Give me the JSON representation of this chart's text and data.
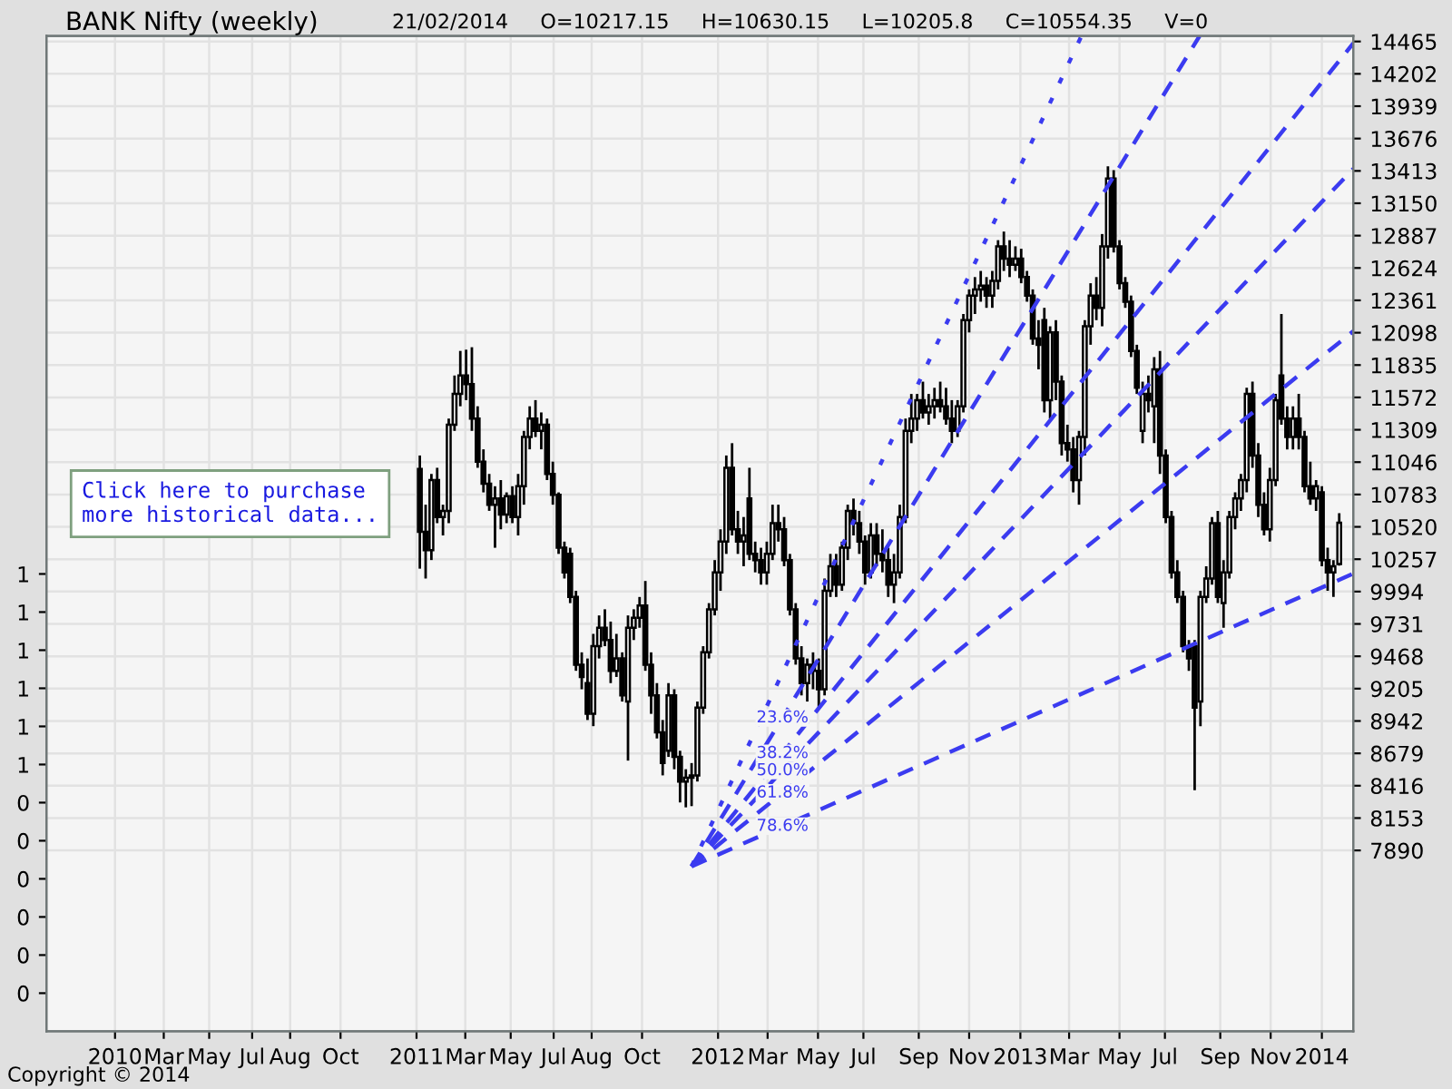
{
  "chart_data": {
    "type": "candlestick",
    "title": "BANK Nifty (weekly)",
    "subtitle": "21/02/2014     O=10217.15     H=10630.15     L=10205.8     C=10554.35     V=0",
    "annotations": [
      "Click here to purchase\nmore historical data...",
      "Copyright © 2014"
    ],
    "series": [
      {
        "color": "#000000",
        "x": [
          "2011-02-04",
          "2011-02-11",
          "2011-02-18",
          "2011-02-25",
          "2011-03-04",
          "2011-03-11",
          "2011-03-18",
          "2011-03-25",
          "2011-04-01",
          "2011-04-08",
          "2011-04-15",
          "2011-04-22",
          "2011-04-29",
          "2011-05-06",
          "2011-05-13",
          "2011-05-20",
          "2011-05-27",
          "2011-06-03",
          "2011-06-10",
          "2011-06-17",
          "2011-06-24",
          "2011-07-01",
          "2011-07-08",
          "2011-07-15",
          "2011-07-22",
          "2011-07-29",
          "2011-08-05",
          "2011-08-12",
          "2011-08-19",
          "2011-08-26",
          "2011-09-02",
          "2011-09-09",
          "2011-09-16",
          "2011-09-23",
          "2011-09-30",
          "2011-10-07",
          "2011-10-14",
          "2011-10-21",
          "2011-10-28",
          "2011-11-04",
          "2011-11-11",
          "2011-11-18",
          "2011-11-25",
          "2011-12-02",
          "2011-12-09",
          "2011-12-16",
          "2011-12-23",
          "2011-12-30",
          "2012-01-06",
          "2012-01-13",
          "2012-01-20",
          "2012-01-27",
          "2012-02-03",
          "2012-02-10",
          "2012-02-17",
          "2012-02-24",
          "2012-03-02",
          "2012-03-09",
          "2012-03-16",
          "2012-03-23",
          "2012-03-30",
          "2012-04-06",
          "2012-04-13",
          "2012-04-20",
          "2012-04-27",
          "2012-05-04",
          "2012-05-11",
          "2012-05-18",
          "2012-05-25",
          "2012-06-01",
          "2012-06-08",
          "2012-06-15",
          "2012-06-22",
          "2012-06-29",
          "2012-07-06",
          "2012-07-13",
          "2012-07-20",
          "2012-07-27",
          "2012-08-03",
          "2012-08-10",
          "2012-08-17",
          "2012-08-24",
          "2012-08-31",
          "2012-09-07",
          "2012-09-14",
          "2012-09-21",
          "2012-09-28",
          "2012-10-05",
          "2012-10-12",
          "2012-10-19",
          "2012-10-26",
          "2012-11-02",
          "2012-11-09",
          "2012-11-16",
          "2012-11-23",
          "2012-11-30",
          "2012-12-07",
          "2012-12-14",
          "2012-12-21",
          "2012-12-28",
          "2013-01-04",
          "2013-01-11",
          "2013-01-18",
          "2013-01-25",
          "2013-02-01",
          "2013-02-08",
          "2013-02-15",
          "2013-02-22",
          "2013-03-01",
          "2013-03-08",
          "2013-03-15",
          "2013-03-22",
          "2013-03-29",
          "2013-04-05",
          "2013-04-12",
          "2013-04-19",
          "2013-04-26",
          "2013-05-03",
          "2013-05-10",
          "2013-05-17",
          "2013-05-24",
          "2013-05-31",
          "2013-06-07",
          "2013-06-14",
          "2013-06-21",
          "2013-06-28",
          "2013-07-05",
          "2013-07-12",
          "2013-07-19",
          "2013-07-26",
          "2013-08-02",
          "2013-08-09",
          "2013-08-16",
          "2013-08-23",
          "2013-08-30",
          "2013-09-06",
          "2013-09-13",
          "2013-09-20",
          "2013-09-27",
          "2013-10-04",
          "2013-10-11",
          "2013-10-18",
          "2013-10-25",
          "2013-11-01",
          "2013-11-08",
          "2013-11-15",
          "2013-11-22",
          "2013-11-29",
          "2013-12-06",
          "2013-12-13",
          "2013-12-20",
          "2013-12-27",
          "2014-01-03",
          "2014-01-10",
          "2014-01-17",
          "2014-01-24",
          "2014-01-31",
          "2014-02-07",
          "2014-02-14",
          "2014-02-21"
        ],
        "ohlc": [
          [
            10990,
            11100,
            10180,
            10480
          ],
          [
            10480,
            10700,
            10100,
            10330
          ],
          [
            10330,
            10950,
            10250,
            10900
          ],
          [
            10900,
            11000,
            10550,
            10600
          ],
          [
            10600,
            10700,
            10450,
            10650
          ],
          [
            10650,
            11400,
            10550,
            11350
          ],
          [
            11350,
            11750,
            11300,
            11600
          ],
          [
            11600,
            11950,
            11500,
            11750
          ],
          [
            11750,
            11960,
            11550,
            11680
          ],
          [
            11680,
            11980,
            11300,
            11400
          ],
          [
            11400,
            11500,
            11000,
            11050
          ],
          [
            11050,
            11150,
            10800,
            10870
          ],
          [
            10870,
            10950,
            10650,
            10700
          ],
          [
            10700,
            10850,
            10350,
            10750
          ],
          [
            10750,
            10900,
            10500,
            10620
          ],
          [
            10620,
            10800,
            10550,
            10770
          ],
          [
            10770,
            10850,
            10550,
            10600
          ],
          [
            10600,
            10950,
            10450,
            10850
          ],
          [
            10850,
            11300,
            10700,
            11250
          ],
          [
            11250,
            11500,
            11150,
            11400
          ],
          [
            11400,
            11550,
            11250,
            11300
          ],
          [
            11300,
            11450,
            11150,
            11350
          ],
          [
            11350,
            11400,
            10900,
            10950
          ],
          [
            10950,
            11050,
            10700,
            10780
          ],
          [
            10780,
            10800,
            10300,
            10350
          ],
          [
            10350,
            10400,
            10100,
            10150
          ],
          [
            10300,
            10350,
            9900,
            9950
          ],
          [
            9950,
            10000,
            9350,
            9400
          ],
          [
            9400,
            9500,
            9200,
            9300
          ],
          [
            9250,
            9450,
            8950,
            9000
          ],
          [
            9000,
            9650,
            8900,
            9550
          ],
          [
            9550,
            9800,
            9450,
            9700
          ],
          [
            9700,
            9850,
            9550,
            9600
          ],
          [
            9600,
            9750,
            9250,
            9350
          ],
          [
            9350,
            9650,
            9300,
            9450
          ],
          [
            9450,
            9500,
            9100,
            9150
          ],
          [
            9100,
            9800,
            8620,
            9700
          ],
          [
            9700,
            9850,
            9600,
            9780
          ],
          [
            9780,
            9950,
            9700,
            9880
          ],
          [
            9880,
            10080,
            9350,
            9400
          ],
          [
            9400,
            9500,
            9000,
            9150
          ],
          [
            9150,
            9250,
            8800,
            8850
          ],
          [
            8850,
            8950,
            8500,
            8600
          ],
          [
            8700,
            9250,
            8650,
            9150
          ],
          [
            9150,
            9200,
            8550,
            8650
          ],
          [
            8650,
            8700,
            8280,
            8450
          ],
          [
            8450,
            8550,
            8240,
            8480
          ],
          [
            8480,
            8600,
            8250,
            8500
          ],
          [
            8500,
            9100,
            8450,
            9050
          ],
          [
            9050,
            9550,
            9000,
            9500
          ],
          [
            9500,
            9900,
            9450,
            9850
          ],
          [
            9850,
            10250,
            9800,
            10150
          ],
          [
            10150,
            10500,
            10000,
            10400
          ],
          [
            10400,
            11100,
            10300,
            11000
          ],
          [
            11000,
            11200,
            10450,
            10500
          ],
          [
            10500,
            10650,
            10300,
            10400
          ],
          [
            10400,
            10600,
            10200,
            10450
          ],
          [
            10750,
            11000,
            10250,
            10300
          ],
          [
            10300,
            10400,
            10150,
            10250
          ],
          [
            10250,
            10350,
            10050,
            10150
          ],
          [
            10150,
            10400,
            10050,
            10300
          ],
          [
            10300,
            10700,
            10250,
            10550
          ],
          [
            10550,
            10700,
            10400,
            10500
          ],
          [
            10500,
            10600,
            10200,
            10250
          ],
          [
            10250,
            10300,
            9800,
            9850
          ],
          [
            9850,
            9900,
            9400,
            9450
          ],
          [
            9450,
            9550,
            9150,
            9250
          ],
          [
            9250,
            9450,
            9100,
            9400
          ],
          [
            9400,
            9500,
            9200,
            9350
          ],
          [
            9350,
            9450,
            9050,
            9200
          ],
          [
            9200,
            10100,
            9150,
            10000
          ],
          [
            10000,
            10300,
            9950,
            10200
          ],
          [
            10200,
            10300,
            9950,
            10050
          ],
          [
            10050,
            10400,
            10000,
            10350
          ],
          [
            10350,
            10700,
            10250,
            10650
          ],
          [
            10650,
            10750,
            10450,
            10550
          ],
          [
            10550,
            10650,
            10300,
            10400
          ],
          [
            10400,
            10450,
            10050,
            10150
          ],
          [
            10150,
            10550,
            10100,
            10450
          ],
          [
            10450,
            10550,
            10200,
            10300
          ],
          [
            10300,
            10500,
            10150,
            10250
          ],
          [
            10250,
            10350,
            9950,
            10050
          ],
          [
            10050,
            10300,
            9900,
            10150
          ],
          [
            10150,
            10700,
            10100,
            10600
          ],
          [
            10600,
            11400,
            10550,
            11300
          ],
          [
            11300,
            11600,
            11200,
            11400
          ],
          [
            11400,
            11600,
            11300,
            11550
          ],
          [
            11550,
            11700,
            11400,
            11450
          ],
          [
            11450,
            11600,
            11350,
            11500
          ],
          [
            11500,
            11650,
            11400,
            11550
          ],
          [
            11550,
            11700,
            11450,
            11500
          ],
          [
            11500,
            11650,
            11350,
            11400
          ],
          [
            11400,
            11550,
            11200,
            11300
          ],
          [
            11300,
            11550,
            11250,
            11500
          ],
          [
            11500,
            12250,
            11450,
            12200
          ],
          [
            12200,
            12450,
            12100,
            12400
          ],
          [
            12400,
            12550,
            12250,
            12450
          ],
          [
            12450,
            12600,
            12350,
            12480
          ],
          [
            12480,
            12550,
            12300,
            12400
          ],
          [
            12400,
            12600,
            12300,
            12520
          ],
          [
            12520,
            12850,
            12450,
            12800
          ],
          [
            12800,
            12920,
            12600,
            12700
          ],
          [
            12700,
            12850,
            12550,
            12650
          ],
          [
            12650,
            12800,
            12600,
            12700
          ],
          [
            12700,
            12780,
            12500,
            12550
          ],
          [
            12550,
            12600,
            12350,
            12400
          ],
          [
            12400,
            12450,
            12000,
            12050
          ],
          [
            12050,
            12200,
            11800,
            12000
          ],
          [
            12200,
            12300,
            11450,
            11550
          ],
          [
            11550,
            12150,
            11400,
            12100
          ],
          [
            12100,
            12200,
            11550,
            11700
          ],
          [
            11700,
            11750,
            11100,
            11200
          ],
          [
            11200,
            11350,
            11050,
            11150
          ],
          [
            11150,
            11250,
            10800,
            10900
          ],
          [
            10900,
            11300,
            10700,
            11250
          ],
          [
            11250,
            12200,
            11100,
            12150
          ],
          [
            12150,
            12500,
            12000,
            12400
          ],
          [
            12400,
            12550,
            12200,
            12300
          ],
          [
            12300,
            12900,
            12150,
            12800
          ],
          [
            12800,
            13450,
            12700,
            13350
          ],
          [
            13350,
            13420,
            12750,
            12800
          ],
          [
            12800,
            12850,
            12450,
            12500
          ],
          [
            12500,
            12550,
            12300,
            12350
          ],
          [
            12350,
            12400,
            11900,
            11950
          ],
          [
            11950,
            12000,
            11600,
            11650
          ],
          [
            11300,
            11700,
            11200,
            11600
          ],
          [
            11600,
            11750,
            11450,
            11550
          ],
          [
            11500,
            11900,
            11200,
            11800
          ],
          [
            11800,
            11950,
            10950,
            11100
          ],
          [
            11100,
            11150,
            10550,
            10600
          ],
          [
            10600,
            10650,
            10100,
            10150
          ],
          [
            10150,
            10250,
            9900,
            9950
          ],
          [
            9950,
            10000,
            9500,
            9550
          ],
          [
            9550,
            9600,
            9350,
            9450
          ],
          [
            9550,
            9600,
            8380,
            9050
          ],
          [
            9100,
            10000,
            8900,
            9950
          ],
          [
            9950,
            10200,
            9900,
            10100
          ],
          [
            10100,
            10600,
            10050,
            10550
          ],
          [
            10550,
            10650,
            9900,
            9950
          ],
          [
            9900,
            10250,
            9700,
            10150
          ],
          [
            10150,
            10650,
            10100,
            10600
          ],
          [
            10600,
            10800,
            10500,
            10750
          ],
          [
            10750,
            10950,
            10650,
            10900
          ],
          [
            10900,
            11650,
            10800,
            11600
          ],
          [
            11600,
            11700,
            11000,
            11100
          ],
          [
            11100,
            11200,
            10600,
            10700
          ],
          [
            10700,
            10800,
            10450,
            10500
          ],
          [
            10500,
            11000,
            10400,
            10900
          ],
          [
            10900,
            11600,
            10850,
            11550
          ],
          [
            11750,
            12250,
            11350,
            11400
          ],
          [
            11400,
            11500,
            11150,
            11250
          ],
          [
            11250,
            11500,
            11150,
            11400
          ],
          [
            11400,
            11600,
            11150,
            11250
          ],
          [
            11250,
            11300,
            10800,
            10850
          ],
          [
            10850,
            11050,
            10700,
            10750
          ],
          [
            10750,
            10900,
            10650,
            10850
          ],
          [
            10800,
            10850,
            10200,
            10250
          ],
          [
            10250,
            10350,
            10000,
            10150
          ],
          [
            10150,
            10250,
            9950,
            10200
          ],
          [
            10217.15,
            10630.15,
            10205.8,
            10554.35
          ]
        ]
      },
      {
        "type": "line",
        "color": "#3b3bf0",
        "line_style": "dotted",
        "x": [
          "2011-12-30",
          "2013-04-15"
        ],
        "values": [
          7760,
          14510
        ]
      },
      {
        "type": "line",
        "name": "23.6%",
        "color": "#3b3bf0",
        "line_style": "dashed",
        "x": [
          "2011-12-30",
          "2013-09-05"
        ],
        "values": [
          7760,
          14510
        ]
      },
      {
        "type": "line",
        "name": "38.2%",
        "color": "#3b3bf0",
        "line_style": "dashed",
        "x": [
          "2011-12-30",
          "2014-03-10"
        ],
        "values": [
          7760,
          14450
        ]
      },
      {
        "type": "line",
        "name": "50.0%",
        "color": "#3b3bf0",
        "line_style": "dashed",
        "x": [
          "2011-12-30",
          "2014-03-10"
        ],
        "values": [
          7760,
          13430
        ]
      },
      {
        "type": "line",
        "name": "61.8%",
        "color": "#3b3bf0",
        "line_style": "dashed",
        "x": [
          "2011-12-30",
          "2014-03-10"
        ],
        "values": [
          7760,
          12110
        ]
      },
      {
        "type": "line",
        "name": "78.6%",
        "color": "#3b3bf0",
        "line_style": "dashed",
        "x": [
          "2011-12-30",
          "2014-03-10"
        ],
        "values": [
          7760,
          10140
        ]
      }
    ],
    "xlim": [
      "2009-11-09",
      "2014-03-10"
    ],
    "xticks": [
      {
        "value": "2010-01-31",
        "label": "2010"
      },
      {
        "value": "2010-03-31",
        "label": "Mar"
      },
      {
        "value": "2010-05-25",
        "label": "May"
      },
      {
        "value": "2010-07-16",
        "label": "Jul"
      },
      {
        "value": "2010-08-31",
        "label": "Aug"
      },
      {
        "value": "2010-10-31",
        "label": "Oct"
      },
      {
        "value": "2011-01-31",
        "label": "2011"
      },
      {
        "value": "2011-03-31",
        "label": "Mar"
      },
      {
        "value": "2011-05-25",
        "label": "May"
      },
      {
        "value": "2011-07-16",
        "label": "Jul"
      },
      {
        "value": "2011-08-31",
        "label": "Aug"
      },
      {
        "value": "2011-10-31",
        "label": "Oct"
      },
      {
        "value": "2012-01-31",
        "label": "2012"
      },
      {
        "value": "2012-03-31",
        "label": "Mar"
      },
      {
        "value": "2012-05-31",
        "label": "May"
      },
      {
        "value": "2012-07-25",
        "label": "Jul"
      },
      {
        "value": "2012-09-30",
        "label": "Sep"
      },
      {
        "value": "2012-11-30",
        "label": "Nov"
      },
      {
        "value": "2013-01-31",
        "label": "2013"
      },
      {
        "value": "2013-03-31",
        "label": "Mar"
      },
      {
        "value": "2013-05-31",
        "label": "May"
      },
      {
        "value": "2013-07-25",
        "label": "Jul"
      },
      {
        "value": "2013-09-30",
        "label": "Sep"
      },
      {
        "value": "2013-11-30",
        "label": "Nov"
      },
      {
        "value": "2014-01-31",
        "label": "2014"
      }
    ],
    "ylim": [
      6420,
      14510
    ],
    "yticks": [
      7890,
      8153,
      8416,
      8679,
      8942,
      9205,
      9468,
      9731,
      9994,
      10257,
      10520,
      10783,
      11046,
      11309,
      11572,
      11835,
      12098,
      12361,
      12624,
      12887,
      13150,
      13413,
      13676,
      13939,
      14202,
      14465
    ],
    "y2lim": [
      -0.64,
      3.8
    ],
    "y2ticks": [
      {
        "value": 1.4,
        "label": "1"
      },
      {
        "value": 1.23,
        "label": "1"
      },
      {
        "value": 1.06,
        "label": "1"
      },
      {
        "value": 0.89,
        "label": "1"
      },
      {
        "value": 0.72,
        "label": "1"
      },
      {
        "value": 0.55,
        "label": "1"
      },
      {
        "value": 0.38,
        "label": "0"
      },
      {
        "value": 0.21,
        "label": "0"
      },
      {
        "value": 0.04,
        "label": "0"
      },
      {
        "value": -0.13,
        "label": "0"
      },
      {
        "value": -0.3,
        "label": "0"
      },
      {
        "value": -0.47,
        "label": "0"
      }
    ],
    "grid": true,
    "legend": false,
    "marker": "none"
  }
}
